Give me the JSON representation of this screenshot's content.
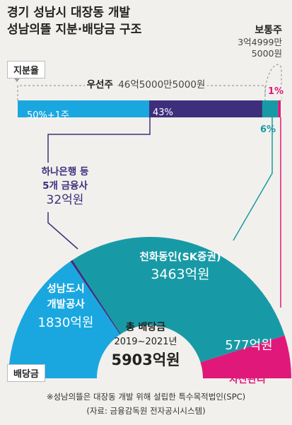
{
  "title": [
    "경기 성남시 대장동 개발",
    "성남의뜰 지분·배당금 구조"
  ],
  "bar_tag": "지분율",
  "dividend_tag": "배당금",
  "preferred_label": "우선주",
  "preferred_amount": "46억5000만5000원",
  "common_label": "보통주",
  "common_amount": [
    "3억4999만",
    "5000원"
  ],
  "bank_label": [
    "하나은행 등",
    "5개 금융사"
  ],
  "bank_amount": "32억원",
  "center": {
    "line1": "총 배당금",
    "line2": "2019~2021년",
    "total": "5903억원"
  },
  "notes": [
    "※성남의뜰은 대장동 개발 위해 설립한 특수목적법인(SPC)",
    "(자료: 금융감독원 전자공시시스템)"
  ],
  "colors": {
    "sky": "#1aa7e0",
    "purple": "#3e2f7d",
    "teal": "#189aa6",
    "magenta": "#e0187a",
    "bg": "#f2f0ec"
  },
  "chart_data": [
    {
      "type": "bar",
      "title": "지분율",
      "series": [
        {
          "name": "성남도시개발공사",
          "value": 50,
          "label": "50%+1주",
          "color": "#1aa7e0"
        },
        {
          "name": "하나은행 등 5개 금융사",
          "value": 43,
          "label": "43%",
          "color": "#3e2f7d"
        },
        {
          "name": "천화동인",
          "value": 6,
          "label": "6%",
          "color": "#189aa6"
        },
        {
          "name": "화천대유자산관리",
          "value": 1,
          "label": "1%",
          "color": "#e0187a"
        }
      ]
    },
    {
      "type": "pie",
      "title": "배당금",
      "slices": [
        {
          "name": "성남도시개발공사",
          "label": [
            "성남도시",
            "개발공사"
          ],
          "value": 1830,
          "value_label": "1830억원",
          "color": "#1aa7e0"
        },
        {
          "name": "하나은행 등 5개 금융사",
          "value": 32,
          "value_label": "32억원",
          "color": "#3e2f7d"
        },
        {
          "name": "천화동인(SK증권)",
          "label": [
            "천화동인(SK증권)"
          ],
          "value": 3463,
          "value_label": "3463억원",
          "color": "#189aa6"
        },
        {
          "name": "화천대유자산관리",
          "label": [
            "화천대유",
            "자산관리"
          ],
          "value": 577,
          "value_label": "577억원",
          "color": "#e0187a"
        }
      ]
    }
  ]
}
